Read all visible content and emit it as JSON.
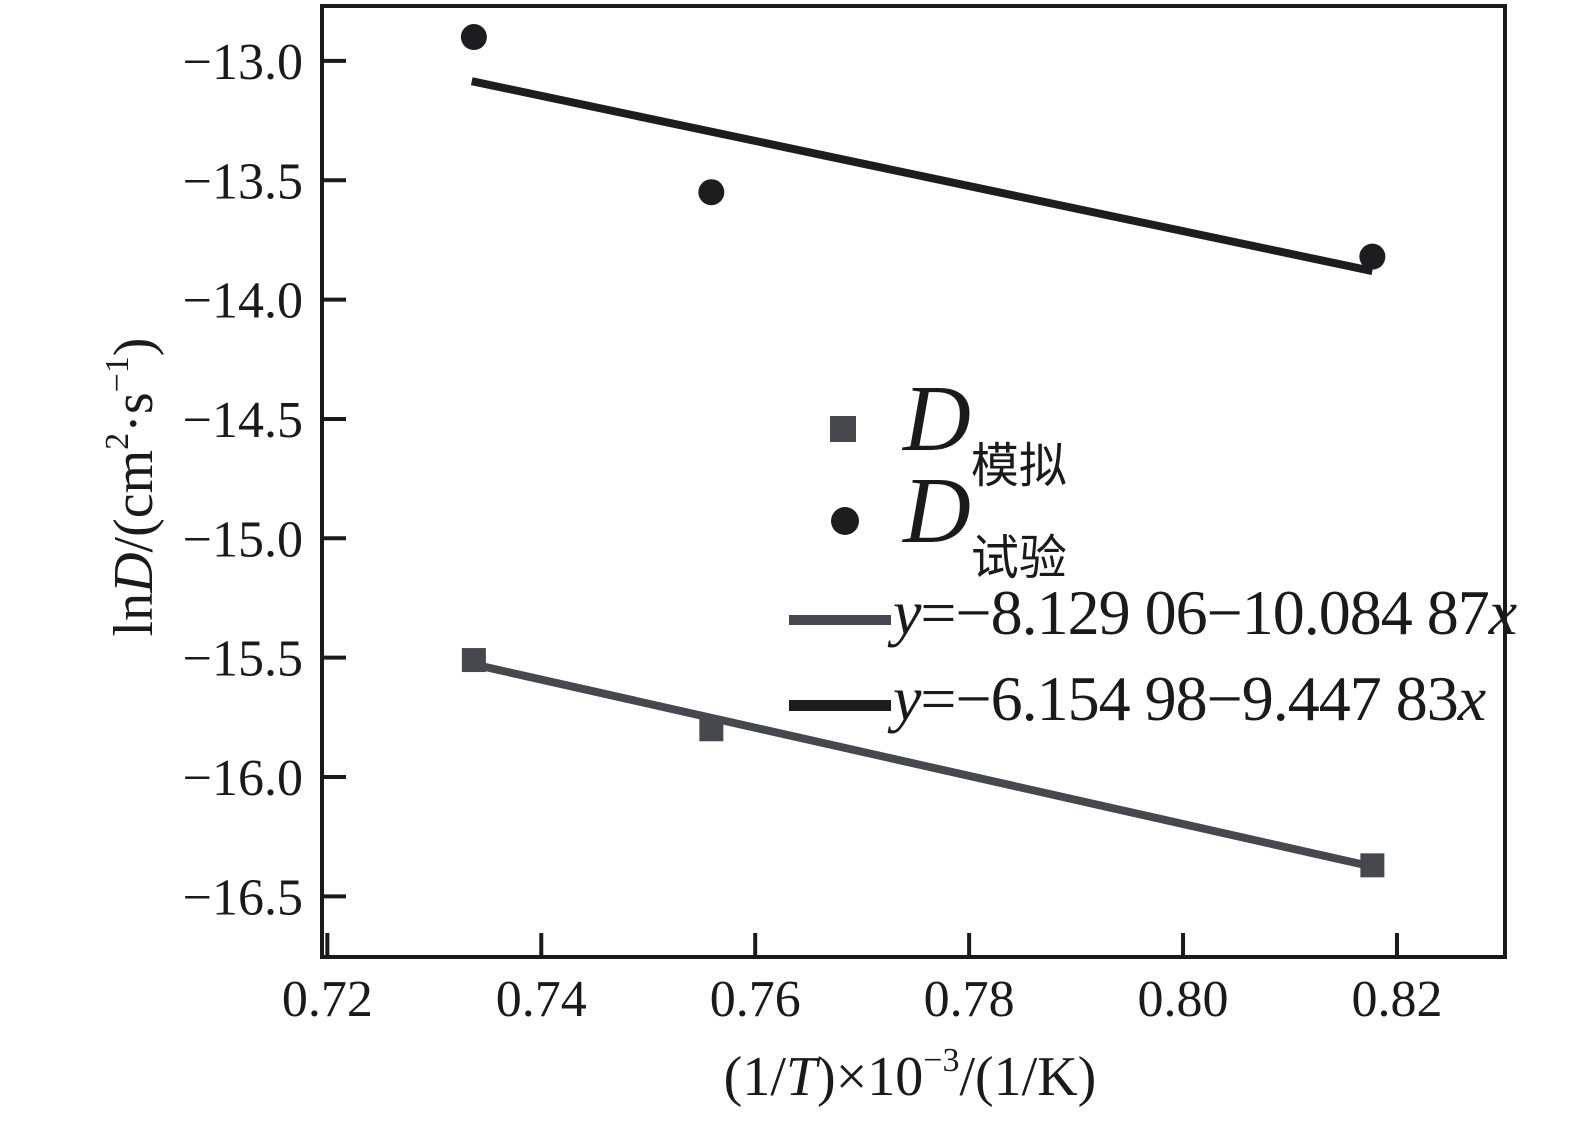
{
  "figure": {
    "background": "#ffffff",
    "frame_color": "#1a1a1a"
  },
  "colors": {
    "simulated": "#47484e",
    "experimental": "#1d1d1f"
  },
  "axis": {
    "xlabel_parts": {
      "p1": "(1/",
      "p2": "T",
      "p3": ")×10",
      "sup1": "−3",
      "p4": "/(1/K)"
    },
    "ylabel_parts": {
      "p1": "ln",
      "p2": "D",
      "p3": "/(cm",
      "sup1": "2",
      "p4": "·s",
      "sup2": "−1",
      "p5": ")"
    }
  },
  "legend": {
    "series": [
      {
        "main": "D",
        "sub": "模拟",
        "marker": "square"
      },
      {
        "main": "D",
        "sub": "试验",
        "marker": "circle"
      }
    ],
    "equations": [
      {
        "lead": "y",
        "body": "=−8.129 06−10.084 87",
        "tail": "x",
        "full": "y=−8.129 06−10.084 87x"
      },
      {
        "lead": "y",
        "body": "=−6.154 98−9.447 83",
        "tail": "x",
        "full": "y=−6.154 98−9.447 83x"
      }
    ]
  },
  "chart_data": {
    "type": "scatter",
    "title": "",
    "xlabel": "(1/T)×10⁻³/(1/K)",
    "ylabel": "lnD/(cm²·s⁻¹)",
    "xlim": [
      0.7195,
      0.8301
    ],
    "ylim": [
      -16.754,
      -12.77
    ],
    "grid": false,
    "legend_position": "center-right",
    "x_tick_values": [
      0.72,
      0.74,
      0.76,
      0.78,
      0.8,
      0.82
    ],
    "x_tick_labels": [
      "0.72",
      "0.74",
      "0.76",
      "0.78",
      "0.80",
      "0.82"
    ],
    "y_tick_values": [
      -13.0,
      -13.5,
      -14.0,
      -14.5,
      -15.0,
      -15.5,
      -16.0,
      -16.5
    ],
    "y_tick_labels": [
      "−13.0",
      "−13.5",
      "−14.0",
      "−14.5",
      "−15.0",
      "−15.5",
      "−16.0",
      "−16.5"
    ],
    "series": [
      {
        "name": "D模拟",
        "marker": "square",
        "color": "#47484e",
        "points": [
          [
            0.7337,
            -15.51
          ],
          [
            0.7559,
            -15.8
          ],
          [
            0.8177,
            -16.37
          ]
        ]
      },
      {
        "name": "D试验",
        "marker": "circle",
        "color": "#1d1d1f",
        "points": [
          [
            0.7337,
            -12.9
          ],
          [
            0.7559,
            -13.55
          ],
          [
            0.8177,
            -13.82
          ]
        ]
      }
    ],
    "fit_lines": [
      {
        "label": "y=−8.129 06−10.084 87x",
        "slope": -10.08487,
        "intercept": -8.12906,
        "color": "#47484e",
        "x_range": [
          0.7335,
          0.8177
        ]
      },
      {
        "label": "y=−6.154 98−9.447 83x",
        "slope": -9.44783,
        "intercept": -6.15498,
        "color": "#1d1d1f",
        "x_range": [
          0.7335,
          0.8177
        ]
      }
    ]
  }
}
